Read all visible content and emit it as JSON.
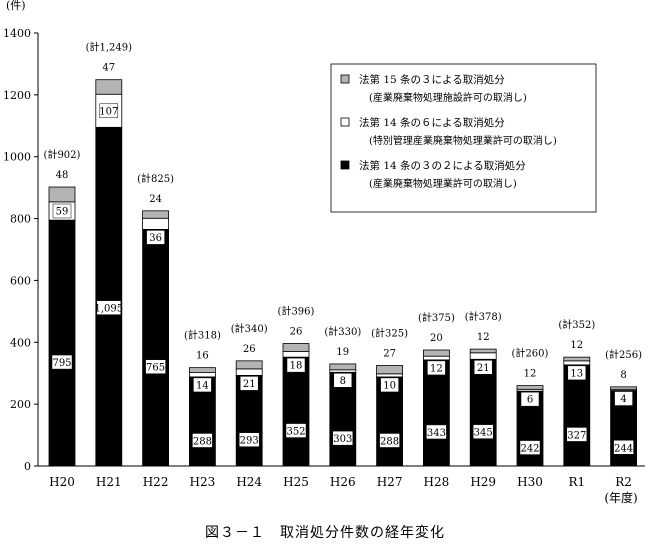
{
  "caption": "図３－１　取消処分件数の経年変化",
  "chart_data": {
    "type": "bar",
    "stacked": true,
    "ylabel": "(件)",
    "xunit": "(年度)",
    "ylim": [
      0,
      1400
    ],
    "yticks": [
      0,
      200,
      400,
      600,
      800,
      1000,
      1200,
      1400
    ],
    "categories": [
      "H20",
      "H21",
      "H22",
      "H23",
      "H24",
      "H25",
      "H26",
      "H27",
      "H28",
      "H29",
      "H30",
      "R1",
      "R2"
    ],
    "totals_labels": [
      "(計902)",
      "(計1,249)",
      "(計825)",
      "(計318)",
      "(計340)",
      "(計396)",
      "(計330)",
      "(計325)",
      "(計375)",
      "(計378)",
      "(計260)",
      "(計352)",
      "(計256)"
    ],
    "series": [
      {
        "name": "法第 14 条の３の２による取消処分",
        "sub": "(産業廃棄物処理業許可の取消し)",
        "color": "#000000",
        "values": [
          795,
          1095,
          765,
          288,
          293,
          352,
          303,
          288,
          343,
          345,
          242,
          327,
          244
        ],
        "labels": [
          "795",
          "1,095",
          "765",
          "288",
          "293",
          "352",
          "303",
          "288",
          "343",
          "345",
          "242",
          "327",
          "244"
        ]
      },
      {
        "name": "法第 14 条の６による取消処分",
        "sub": "(特別管理産業廃棄物処理業許可の取消し)",
        "color": "#ffffff",
        "values": [
          59,
          107,
          36,
          14,
          21,
          18,
          8,
          10,
          12,
          21,
          6,
          13,
          4
        ],
        "labels": [
          "59",
          "107",
          "36",
          "14",
          "21",
          "18",
          "8",
          "10",
          "12",
          "21",
          "6",
          "13",
          "4"
        ]
      },
      {
        "name": "法第 15 条の３による取消処分",
        "sub": "(産業廃棄物処理施設許可の取消し)",
        "color": "#b4b4b4",
        "values": [
          48,
          47,
          24,
          16,
          26,
          26,
          19,
          27,
          20,
          12,
          12,
          12,
          8
        ],
        "labels": [
          "48",
          "47",
          "24",
          "16",
          "26",
          "26",
          "19",
          "27",
          "20",
          "12",
          "12",
          "12",
          "8"
        ]
      }
    ],
    "legend_position": "top-right",
    "grid": false
  }
}
